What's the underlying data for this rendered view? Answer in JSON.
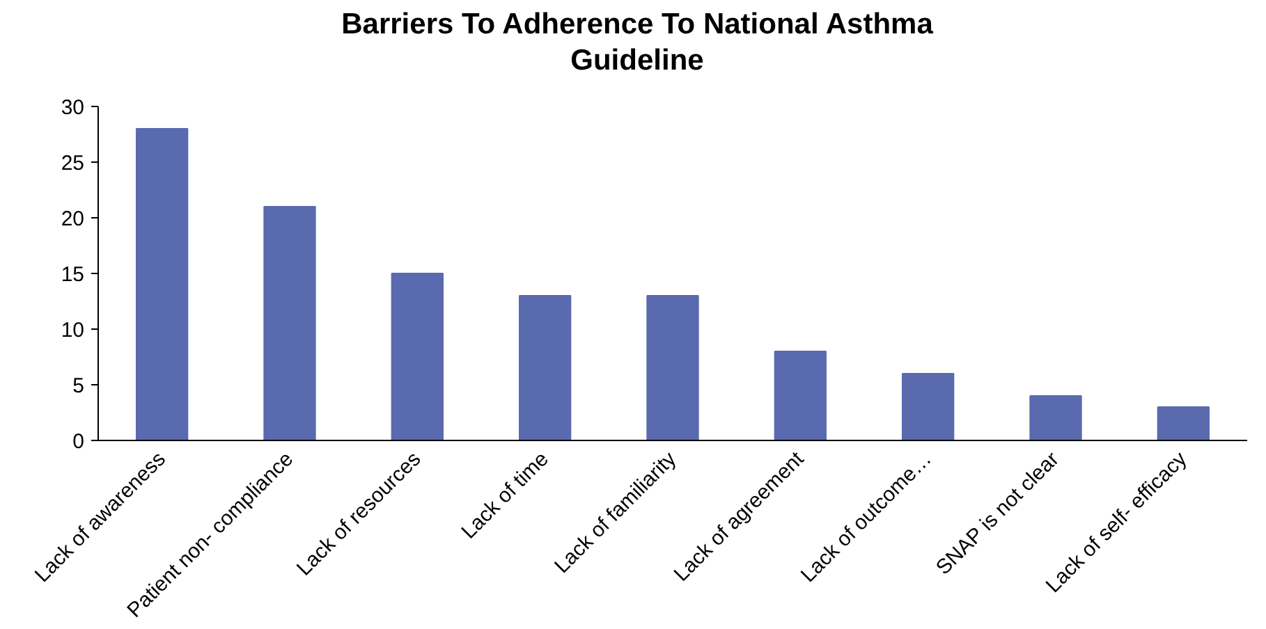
{
  "chart_data": {
    "type": "bar",
    "title": "Barriers To Adherence To National Asthma Guideline",
    "categories": [
      "Lack of awareness",
      "Patient non- compliance",
      "Lack of resources",
      "Lack of time",
      "Lack of familiarity",
      "Lack of agreement",
      "Lack of outcome…",
      "SNAP is not clear",
      "Lack of self- efficacy"
    ],
    "values": [
      28,
      21,
      15,
      13,
      13,
      8,
      6,
      4,
      3
    ],
    "color": "#5a6aae",
    "ylim": [
      0,
      30
    ],
    "yticks": [
      0,
      5,
      10,
      15,
      20,
      25,
      30
    ],
    "grid": false
  }
}
